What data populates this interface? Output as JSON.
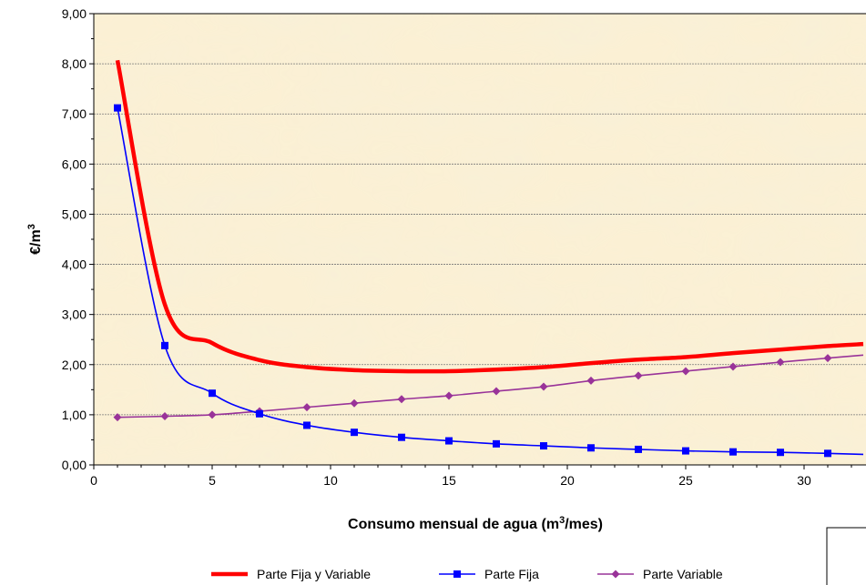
{
  "chart_data": {
    "type": "line",
    "xlabel": "Consumo mensual de agua (m3/mes)",
    "xlabel_parts": {
      "before": "Consumo mensual de agua (m",
      "sup": "3",
      "after": "/mes)"
    },
    "ylabel": "€/m3",
    "ylabel_parts": {
      "before": "€/m",
      "sup": "3"
    },
    "xlim": [
      0,
      32.5
    ],
    "ylim": [
      0,
      9
    ],
    "x_ticks": [
      0,
      5,
      10,
      15,
      20,
      25,
      30
    ],
    "x_tick_labels": [
      "0",
      "5",
      "10",
      "15",
      "20",
      "25",
      "30"
    ],
    "y_ticks": [
      0,
      1,
      2,
      3,
      4,
      5,
      6,
      7,
      8,
      9
    ],
    "y_tick_labels": [
      "0,00",
      "1,00",
      "2,00",
      "3,00",
      "4,00",
      "5,00",
      "6,00",
      "7,00",
      "8,00",
      "9,00"
    ],
    "grid": "horizontal dashed",
    "legend_position": "bottom",
    "series": [
      {
        "name": "Parte Fija y Variable",
        "color": "#ff0000",
        "marker": "none",
        "x": [
          1,
          3,
          5,
          7,
          9,
          11,
          13,
          15,
          17,
          19,
          21,
          23,
          25,
          27,
          29,
          31,
          32.5
        ],
        "values": [
          8.07,
          3.2,
          2.43,
          2.09,
          1.95,
          1.89,
          1.87,
          1.87,
          1.9,
          1.95,
          2.03,
          2.1,
          2.15,
          2.23,
          2.3,
          2.37,
          2.41
        ]
      },
      {
        "name": "Parte Fija",
        "color": "#0000ff",
        "marker": "square",
        "x": [
          1,
          3,
          5,
          7,
          9,
          11,
          13,
          15,
          17,
          19,
          21,
          23,
          25,
          27,
          29,
          31,
          32.5
        ],
        "values": [
          7.12,
          2.38,
          1.43,
          1.02,
          0.79,
          0.65,
          0.55,
          0.48,
          0.42,
          0.38,
          0.34,
          0.31,
          0.28,
          0.26,
          0.25,
          0.23,
          0.21
        ]
      },
      {
        "name": "Parte Variable",
        "color": "#993399",
        "marker": "diamond",
        "x": [
          1,
          3,
          5,
          7,
          9,
          11,
          13,
          15,
          17,
          19,
          21,
          23,
          25,
          27,
          29,
          31,
          32.5
        ],
        "values": [
          0.95,
          0.97,
          1.0,
          1.07,
          1.15,
          1.23,
          1.31,
          1.38,
          1.47,
          1.56,
          1.68,
          1.78,
          1.87,
          1.96,
          2.05,
          2.13,
          2.19
        ]
      }
    ]
  }
}
